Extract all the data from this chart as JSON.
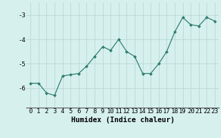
{
  "x": [
    0,
    1,
    2,
    3,
    4,
    5,
    6,
    7,
    8,
    9,
    10,
    11,
    12,
    13,
    14,
    15,
    16,
    17,
    18,
    19,
    20,
    21,
    22,
    23
  ],
  "y": [
    -5.8,
    -5.8,
    -6.2,
    -6.3,
    -5.5,
    -5.45,
    -5.4,
    -5.1,
    -4.7,
    -4.3,
    -4.45,
    -4.0,
    -4.5,
    -4.7,
    -5.4,
    -5.4,
    -5.0,
    -4.5,
    -3.7,
    -3.1,
    -3.4,
    -3.45,
    -3.1,
    -3.25
  ],
  "xlabel": "Humidex (Indice chaleur)",
  "ylim": [
    -6.8,
    -2.5
  ],
  "xlim": [
    -0.5,
    23.5
  ],
  "yticks": [
    -3,
    -4,
    -5,
    -6
  ],
  "xticks": [
    0,
    1,
    2,
    3,
    4,
    5,
    6,
    7,
    8,
    9,
    10,
    11,
    12,
    13,
    14,
    15,
    16,
    17,
    18,
    19,
    20,
    21,
    22,
    23
  ],
  "line_color": "#2e7d6e",
  "bg_color": "#d6f0ee",
  "grid_color": "#b8d8d4",
  "marker": "D",
  "marker_size": 2.0,
  "line_width": 0.9,
  "xlabel_fontsize": 7.5,
  "tick_fontsize": 6.5
}
